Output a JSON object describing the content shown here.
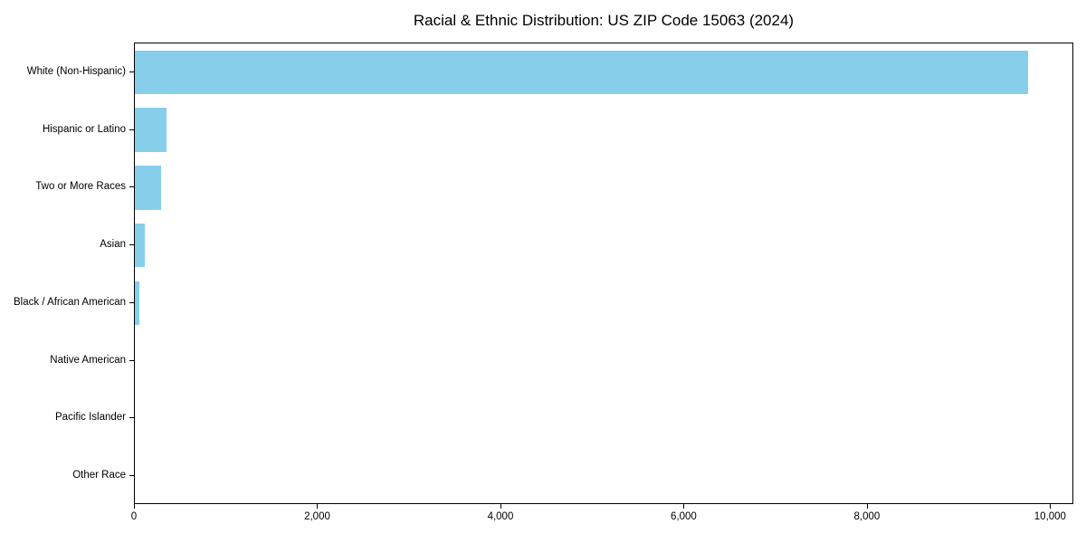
{
  "chart_data": {
    "type": "bar",
    "orientation": "horizontal",
    "title": "Racial & Ethnic Distribution: US ZIP Code 15063 (2024)",
    "categories": [
      "White (Non-Hispanic)",
      "Hispanic or Latino",
      "Two or More Races",
      "Asian",
      "Black / African American",
      "Native American",
      "Pacific Islander",
      "Other Race"
    ],
    "values": [
      9765,
      345,
      285,
      105,
      48,
      0,
      0,
      0
    ],
    "xlabel": "",
    "ylabel": "",
    "xlim": [
      0,
      10253
    ],
    "xticks": [
      0,
      2000,
      4000,
      6000,
      8000,
      10000
    ],
    "xtick_labels": [
      "0",
      "2,000",
      "4,000",
      "6,000",
      "8,000",
      "10,000"
    ],
    "bar_color": "#87CEEB",
    "grid": false,
    "legend": null
  }
}
